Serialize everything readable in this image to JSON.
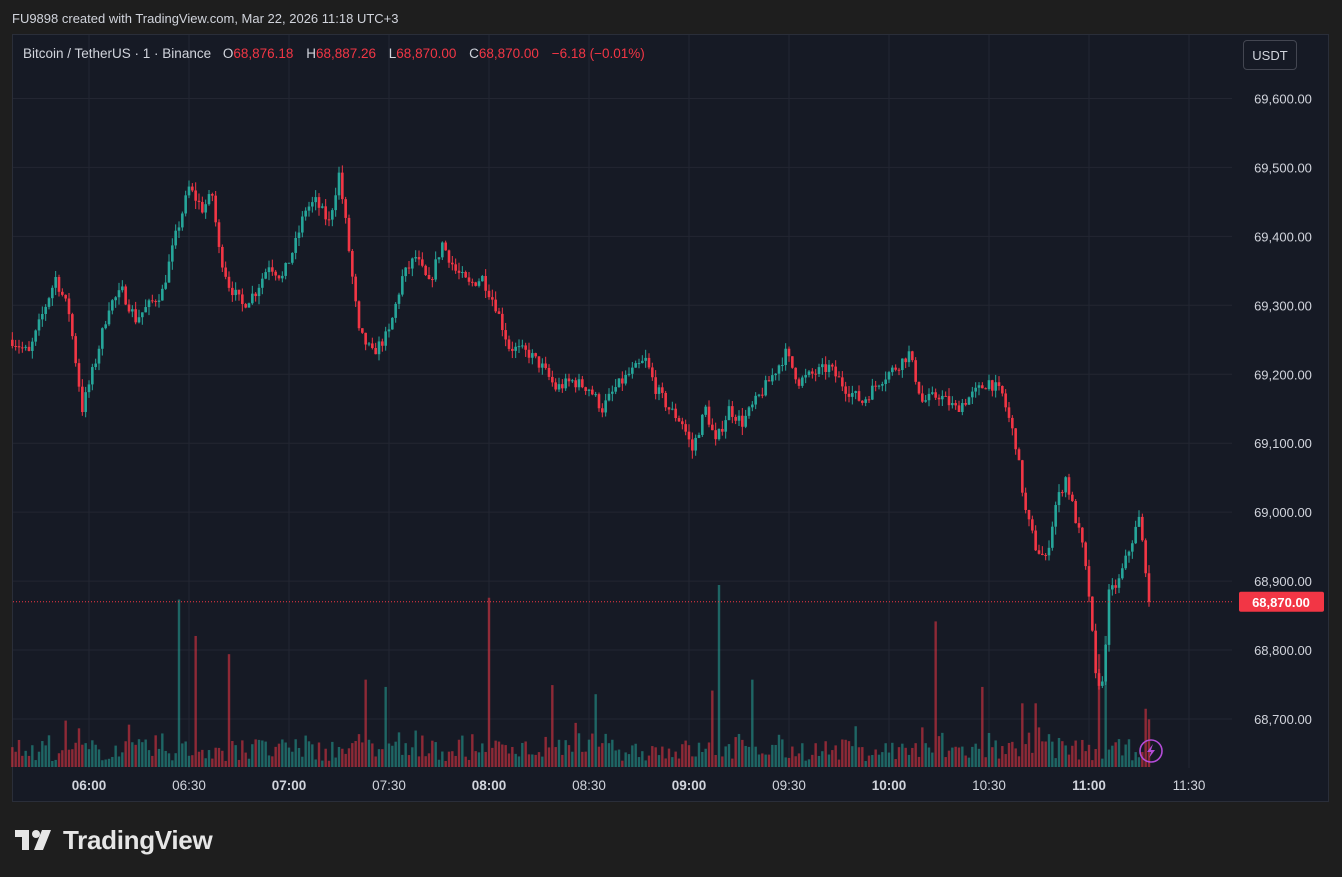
{
  "header": {
    "created_by": "FU9898 created with TradingView.com, Mar 22, 2026 11:18 UTC+3"
  },
  "legend": {
    "symbol": "Bitcoin / TetherUS · 1 · Binance",
    "o_label": "O",
    "o_value": "68,876.18",
    "h_label": "H",
    "h_value": "68,887.26",
    "l_label": "L",
    "l_value": "68,870.00",
    "c_label": "C",
    "c_value": "68,870.00",
    "change": "−6.18 (−0.01%)"
  },
  "unit_button": "USDT",
  "brand": {
    "name": "TradingView"
  },
  "colors": {
    "up": "#26a69a",
    "down": "#f23645",
    "background": "#161a25",
    "grid": "#232632",
    "axis_text": "#d1d4dc",
    "price_tag": "#f23645"
  },
  "icons": {
    "flash": "lightning-icon",
    "logo": "tradingview-logo-icon"
  },
  "chart_data": {
    "type": "candlestick",
    "instrument": "BTC/USDT",
    "interval": "1 minute",
    "exchange": "Binance",
    "price_axis": {
      "ticks": [
        68700,
        68800,
        68900,
        69000,
        69100,
        69200,
        69300,
        69400,
        69500,
        69600
      ],
      "tick_labels": [
        "68,700.00",
        "68,800.00",
        "68,900.00",
        "69,000.00",
        "69,100.00",
        "69,200.00",
        "69,300.00",
        "69,400.00",
        "69,500.00",
        "69,600.00"
      ],
      "range": [
        68640,
        69660
      ],
      "side": "right"
    },
    "time_axis": {
      "ticks": [
        "05:37",
        "06:00",
        "06:30",
        "07:00",
        "07:30",
        "08:00",
        "08:30",
        "09:00",
        "09:30",
        "10:00",
        "10:30",
        "11:00",
        "11:30"
      ],
      "tick_labels": [
        "06:00",
        "06:30",
        "07:00",
        "07:30",
        "08:00",
        "08:30",
        "09:00",
        "09:30",
        "10:00",
        "10:30",
        "11:00",
        "11:30"
      ],
      "bold_labels": [
        "06:00",
        "07:00",
        "08:00",
        "09:00",
        "10:00",
        "11:00"
      ],
      "range_start": "05:37",
      "range_end": "11:37"
    },
    "last_price": 68870,
    "last_price_label": "68,870.00",
    "grid": true,
    "close_path": [
      [
        "05:37",
        69250
      ],
      [
        "05:42",
        69230
      ],
      [
        "05:47",
        69300
      ],
      [
        "05:50",
        69340
      ],
      [
        "05:54",
        69290
      ],
      [
        "05:58",
        69150
      ],
      [
        "06:02",
        69220
      ],
      [
        "06:06",
        69300
      ],
      [
        "06:10",
        69320
      ],
      [
        "06:14",
        69280
      ],
      [
        "06:18",
        69300
      ],
      [
        "06:22",
        69320
      ],
      [
        "06:26",
        69400
      ],
      [
        "06:30",
        69470
      ],
      [
        "06:34",
        69440
      ],
      [
        "06:37",
        69460
      ],
      [
        "06:39",
        69380
      ],
      [
        "06:42",
        69330
      ],
      [
        "06:46",
        69300
      ],
      [
        "06:50",
        69320
      ],
      [
        "06:54",
        69360
      ],
      [
        "06:58",
        69340
      ],
      [
        "07:02",
        69390
      ],
      [
        "07:05",
        69440
      ],
      [
        "07:08",
        69450
      ],
      [
        "07:12",
        69420
      ],
      [
        "07:15",
        69490
      ],
      [
        "07:17",
        69420
      ],
      [
        "07:21",
        69260
      ],
      [
        "07:25",
        69230
      ],
      [
        "07:30",
        69260
      ],
      [
        "07:34",
        69340
      ],
      [
        "07:38",
        69370
      ],
      [
        "07:42",
        69330
      ],
      [
        "07:46",
        69390
      ],
      [
        "07:50",
        69350
      ],
      [
        "07:54",
        69330
      ],
      [
        "07:58",
        69340
      ],
      [
        "08:02",
        69300
      ],
      [
        "08:06",
        69240
      ],
      [
        "08:12",
        69230
      ],
      [
        "08:16",
        69210
      ],
      [
        "08:20",
        69180
      ],
      [
        "08:25",
        69190
      ],
      [
        "08:30",
        69180
      ],
      [
        "08:34",
        69150
      ],
      [
        "08:38",
        69180
      ],
      [
        "08:42",
        69200
      ],
      [
        "08:47",
        69220
      ],
      [
        "08:50",
        69180
      ],
      [
        "08:54",
        69150
      ],
      [
        "08:58",
        69130
      ],
      [
        "09:01",
        69090
      ],
      [
        "09:05",
        69150
      ],
      [
        "09:08",
        69100
      ],
      [
        "09:12",
        69150
      ],
      [
        "09:16",
        69130
      ],
      [
        "09:20",
        69160
      ],
      [
        "09:24",
        69190
      ],
      [
        "09:29",
        69230
      ],
      [
        "09:33",
        69190
      ],
      [
        "09:37",
        69200
      ],
      [
        "09:42",
        69210
      ],
      [
        "09:47",
        69180
      ],
      [
        "09:52",
        69160
      ],
      [
        "09:57",
        69190
      ],
      [
        "10:02",
        69210
      ],
      [
        "10:06",
        69230
      ],
      [
        "10:10",
        69160
      ],
      [
        "10:15",
        69170
      ],
      [
        "10:20",
        69150
      ],
      [
        "10:25",
        69170
      ],
      [
        "10:30",
        69190
      ],
      [
        "10:34",
        69170
      ],
      [
        "10:38",
        69100
      ],
      [
        "10:41",
        69000
      ],
      [
        "10:44",
        68950
      ],
      [
        "10:47",
        68930
      ],
      [
        "10:50",
        69010
      ],
      [
        "10:53",
        69050
      ],
      [
        "10:56",
        68990
      ],
      [
        "10:58",
        68950
      ],
      [
        "11:00",
        68880
      ],
      [
        "11:02",
        68760
      ],
      [
        "11:04",
        68750
      ],
      [
        "11:06",
        68880
      ],
      [
        "11:09",
        68900
      ],
      [
        "11:13",
        68960
      ],
      [
        "11:15",
        68990
      ],
      [
        "11:17",
        68920
      ],
      [
        "11:18",
        68870
      ]
    ],
    "volume_spikes": [
      [
        "06:27",
        0.92
      ],
      [
        "06:32",
        0.72
      ],
      [
        "06:42",
        0.62
      ],
      [
        "07:23",
        0.48
      ],
      [
        "07:29",
        0.44
      ],
      [
        "08:00",
        0.93
      ],
      [
        "08:19",
        0.45
      ],
      [
        "08:32",
        0.4
      ],
      [
        "09:09",
        1.0
      ],
      [
        "09:07",
        0.42
      ],
      [
        "09:19",
        0.48
      ],
      [
        "10:14",
        0.8
      ],
      [
        "10:28",
        0.44
      ],
      [
        "10:40",
        0.35
      ],
      [
        "10:44",
        0.35
      ],
      [
        "11:03",
        0.62
      ],
      [
        "11:05",
        0.72
      ],
      [
        "11:17",
        0.32
      ]
    ]
  }
}
